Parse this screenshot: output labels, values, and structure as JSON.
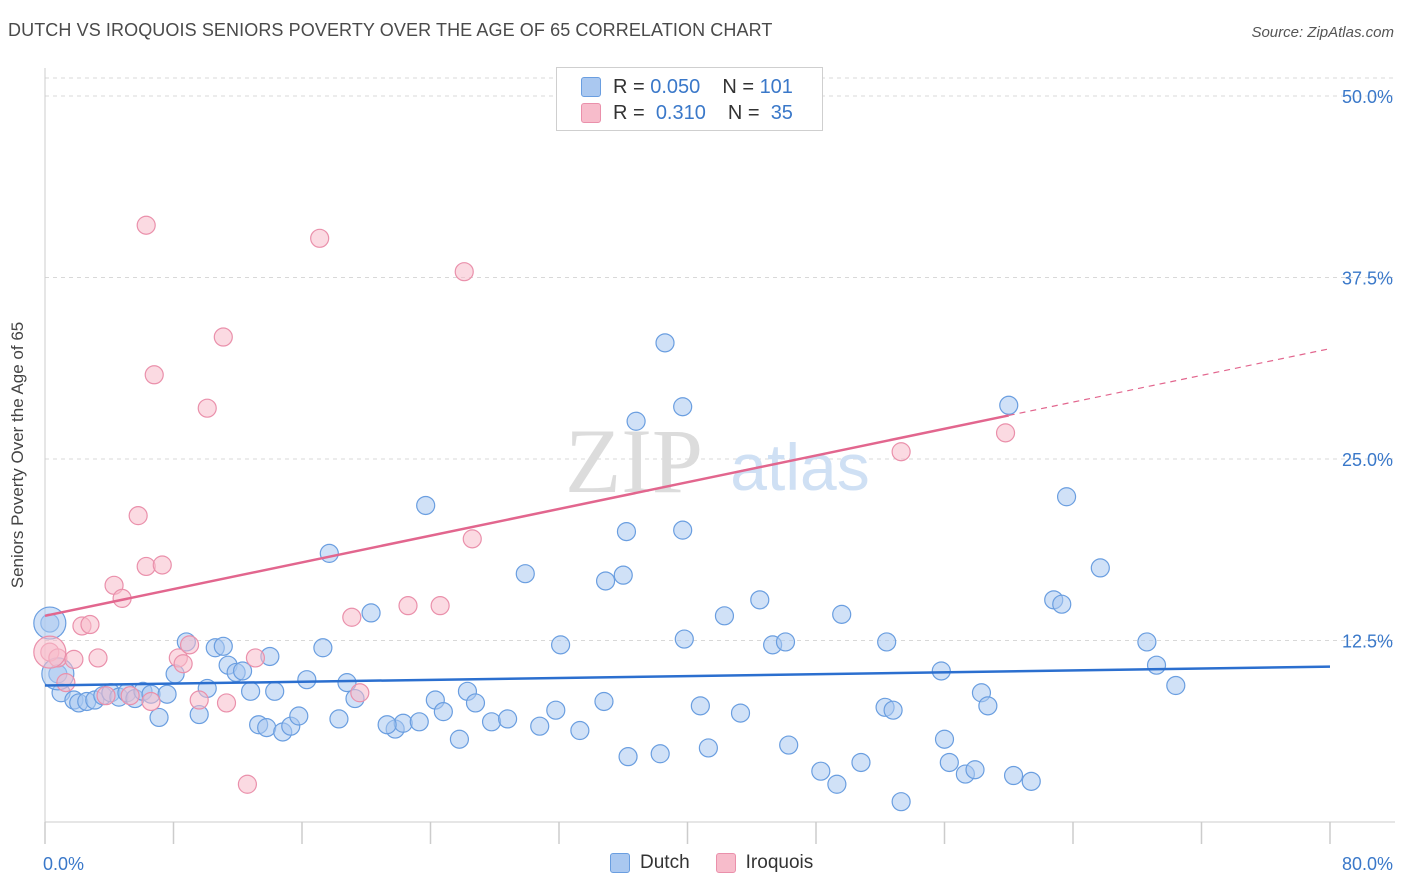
{
  "title": "DUTCH VS IROQUOIS SENIORS POVERTY OVER THE AGE OF 65 CORRELATION CHART",
  "source": "Source: ZipAtlas.com",
  "watermark": {
    "zip": "ZIP",
    "atlas": "atlas"
  },
  "legend": {
    "rows": [
      {
        "r_label": "R =",
        "r_value": "0.050",
        "n_label": "N =",
        "n_value": "101"
      },
      {
        "r_label": "R =",
        "r_value": "0.310",
        "n_label": "N =",
        "n_value": "35"
      }
    ]
  },
  "bottom_legend": [
    "Dutch",
    "Iroquois"
  ],
  "colors": {
    "dutch_fill": "#aac8f0",
    "dutch_stroke": "#6a9ee0",
    "dutch_line": "#2b6fcf",
    "iroquois_fill": "#f7bccb",
    "iroquois_stroke": "#ea90ab",
    "iroquois_line": "#e2668e",
    "tick_label": "#3a78c9",
    "grid": "#d8d8d8"
  },
  "chart_data": {
    "type": "scatter",
    "title": "DUTCH VS IROQUOIS SENIORS POVERTY OVER THE AGE OF 65 CORRELATION CHART",
    "xlabel": "",
    "ylabel": "Seniors Poverty Over the Age of 65",
    "xlim": [
      0,
      80
    ],
    "ylim": [
      0,
      50
    ],
    "x_tick_labels": [
      "0.0%",
      "80.0%"
    ],
    "y_ticks": [
      12.5,
      25.0,
      37.5,
      50.0
    ],
    "y_tick_labels": [
      "12.5%",
      "25.0%",
      "37.5%",
      "50.0%"
    ],
    "grid": true,
    "legend_position": "top-center",
    "series": [
      {
        "name": "Dutch",
        "r": 0.05,
        "n": 101,
        "trend": {
          "x": [
            0,
            80
          ],
          "y": [
            9.4,
            10.7
          ]
        },
        "points": [
          [
            0.3,
            13.7
          ],
          [
            0.8,
            10.2
          ],
          [
            1.0,
            8.9
          ],
          [
            1.8,
            8.4
          ],
          [
            2.1,
            8.2
          ],
          [
            2.6,
            8.3
          ],
          [
            3.1,
            8.4
          ],
          [
            3.6,
            8.7
          ],
          [
            4.1,
            8.9
          ],
          [
            4.6,
            8.6
          ],
          [
            5.1,
            8.9
          ],
          [
            5.6,
            8.5
          ],
          [
            6.1,
            9.0
          ],
          [
            6.6,
            8.8
          ],
          [
            7.6,
            8.8
          ],
          [
            7.1,
            7.2
          ],
          [
            8.1,
            10.2
          ],
          [
            8.8,
            12.4
          ],
          [
            9.6,
            7.4
          ],
          [
            10.1,
            9.2
          ],
          [
            10.6,
            12.0
          ],
          [
            11.1,
            12.1
          ],
          [
            11.4,
            10.8
          ],
          [
            11.9,
            10.3
          ],
          [
            12.3,
            10.4
          ],
          [
            12.8,
            9.0
          ],
          [
            13.3,
            6.7
          ],
          [
            13.8,
            6.5
          ],
          [
            14.3,
            9.0
          ],
          [
            14.8,
            6.2
          ],
          [
            15.3,
            6.6
          ],
          [
            15.8,
            7.3
          ],
          [
            16.3,
            9.8
          ],
          [
            17.3,
            12.0
          ],
          [
            18.3,
            7.1
          ],
          [
            18.8,
            9.6
          ],
          [
            19.3,
            8.5
          ],
          [
            20.3,
            14.4
          ],
          [
            21.8,
            6.4
          ],
          [
            22.3,
            6.8
          ],
          [
            23.3,
            6.9
          ],
          [
            21.3,
            6.7
          ],
          [
            24.3,
            8.4
          ],
          [
            24.8,
            7.6
          ],
          [
            25.8,
            5.7
          ],
          [
            26.3,
            9.0
          ],
          [
            26.8,
            8.2
          ],
          [
            27.8,
            6.9
          ],
          [
            28.8,
            7.1
          ],
          [
            30.8,
            6.6
          ],
          [
            31.8,
            7.7
          ],
          [
            33.3,
            6.3
          ],
          [
            34.8,
            8.3
          ],
          [
            36.3,
            4.5
          ],
          [
            38.3,
            4.7
          ],
          [
            39.8,
            12.6
          ],
          [
            40.8,
            8.0
          ],
          [
            41.3,
            5.1
          ],
          [
            42.3,
            14.2
          ],
          [
            43.3,
            7.5
          ],
          [
            45.3,
            12.2
          ],
          [
            46.3,
            5.3
          ],
          [
            48.3,
            3.5
          ],
          [
            49.3,
            2.6
          ],
          [
            50.8,
            4.1
          ],
          [
            52.3,
            7.9
          ],
          [
            52.8,
            7.7
          ],
          [
            53.3,
            1.4
          ],
          [
            56.3,
            4.1
          ],
          [
            57.3,
            3.3
          ],
          [
            58.3,
            8.9
          ],
          [
            60.3,
            3.2
          ],
          [
            62.8,
            15.3
          ],
          [
            63.3,
            15.0
          ],
          [
            14.0,
            11.4
          ],
          [
            17.7,
            18.5
          ],
          [
            23.7,
            21.8
          ],
          [
            29.9,
            17.1
          ],
          [
            34.9,
            16.6
          ],
          [
            36.2,
            20.0
          ],
          [
            32.1,
            12.2
          ],
          [
            36.0,
            17.0
          ],
          [
            39.7,
            20.1
          ],
          [
            44.5,
            15.3
          ],
          [
            46.1,
            12.4
          ],
          [
            49.6,
            14.3
          ],
          [
            52.4,
            12.4
          ],
          [
            55.8,
            10.4
          ],
          [
            60.0,
            28.7
          ],
          [
            65.7,
            17.5
          ],
          [
            68.6,
            12.4
          ],
          [
            69.2,
            10.8
          ],
          [
            70.4,
            9.4
          ],
          [
            63.6,
            22.4
          ],
          [
            38.6,
            33.0
          ],
          [
            36.8,
            27.6
          ],
          [
            39.7,
            28.6
          ],
          [
            56.0,
            5.7
          ],
          [
            57.9,
            3.6
          ],
          [
            61.4,
            2.8
          ],
          [
            58.7,
            8.0
          ]
        ]
      },
      {
        "name": "Iroquois",
        "r": 0.31,
        "n": 35,
        "trend": {
          "x": [
            0,
            80
          ],
          "y": [
            14.2,
            32.6
          ]
        },
        "points": [
          [
            0.3,
            11.7
          ],
          [
            0.8,
            11.3
          ],
          [
            1.3,
            9.6
          ],
          [
            1.8,
            11.2
          ],
          [
            2.3,
            13.5
          ],
          [
            2.8,
            13.6
          ],
          [
            3.3,
            11.3
          ],
          [
            3.8,
            8.7
          ],
          [
            4.3,
            16.3
          ],
          [
            4.8,
            15.4
          ],
          [
            5.3,
            8.7
          ],
          [
            5.8,
            21.1
          ],
          [
            6.3,
            17.6
          ],
          [
            6.6,
            8.3
          ],
          [
            6.3,
            41.1
          ],
          [
            6.8,
            30.8
          ],
          [
            7.3,
            17.7
          ],
          [
            8.3,
            11.3
          ],
          [
            8.6,
            10.9
          ],
          [
            9.6,
            8.4
          ],
          [
            10.1,
            28.5
          ],
          [
            11.1,
            33.4
          ],
          [
            11.3,
            8.2
          ],
          [
            12.6,
            2.6
          ],
          [
            13.1,
            11.3
          ],
          [
            17.1,
            40.2
          ],
          [
            19.1,
            14.1
          ],
          [
            19.6,
            8.9
          ],
          [
            22.6,
            14.9
          ],
          [
            24.6,
            14.9
          ],
          [
            26.1,
            37.9
          ],
          [
            26.6,
            19.5
          ],
          [
            53.3,
            25.5
          ],
          [
            59.8,
            26.8
          ],
          [
            9.0,
            12.2
          ]
        ]
      }
    ]
  }
}
